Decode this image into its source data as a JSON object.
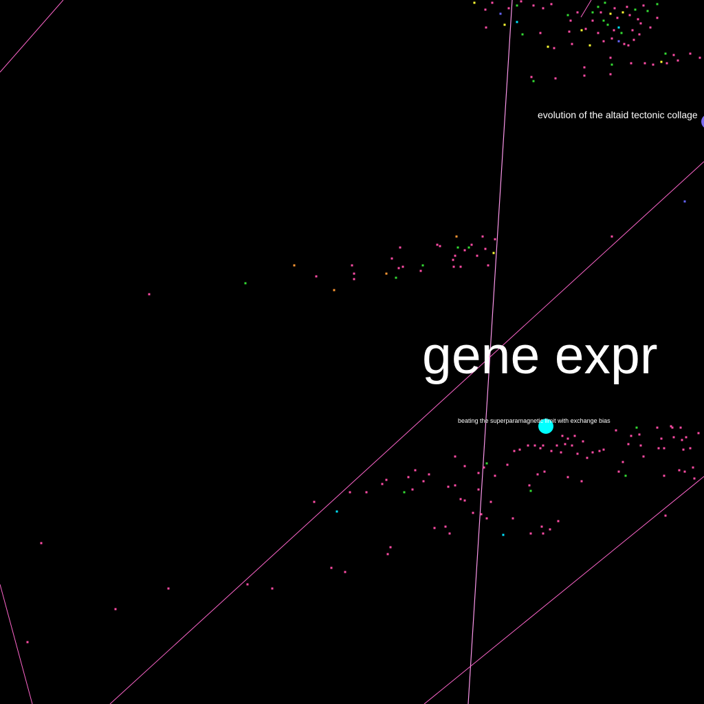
{
  "labels": {
    "main": "gene expr",
    "top_right": "evolution of the altaid tectonic collage",
    "middle": "beating the superparamagnetic limit with exchange bias"
  },
  "colors": {
    "background": "#000000",
    "edge": "#ff66cc",
    "edge_light": "#ff99ee",
    "node_pink": "#ff4da6",
    "node_green": "#33dd33",
    "node_yellow": "#ffff33",
    "node_orange": "#ff9933",
    "node_cyan": "#00e5ff",
    "node_blue": "#6666ff",
    "node_highlight_cyan": "#00ffff",
    "node_highlight_blue": "#7b6cf0",
    "text": "#ffffff"
  }
}
